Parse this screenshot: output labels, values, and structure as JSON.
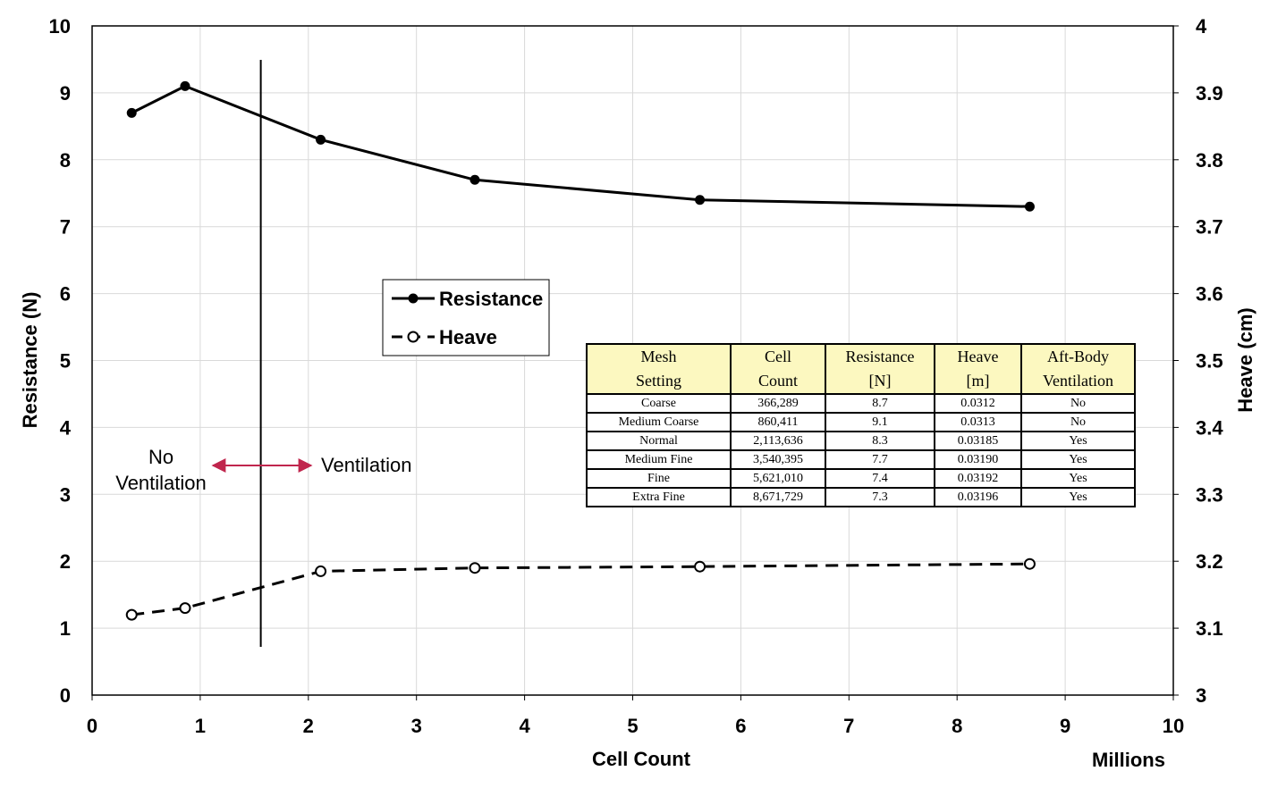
{
  "chart_data": {
    "type": "line",
    "title": "",
    "xlabel": "Cell Count",
    "x_unit_label": "Millions",
    "ylabel_left": "Resistance (N)",
    "ylabel_right": "Heave (cm)",
    "xlim": [
      0,
      10
    ],
    "ylim_left": [
      0,
      10
    ],
    "ylim_right": [
      3,
      4
    ],
    "x_ticks": [
      "0",
      "1",
      "2",
      "3",
      "4",
      "5",
      "6",
      "7",
      "8",
      "9",
      "10"
    ],
    "y_left_ticks": [
      "0",
      "1",
      "2",
      "3",
      "4",
      "5",
      "6",
      "7",
      "8",
      "9",
      "10"
    ],
    "y_right_ticks": [
      "3",
      "3.1",
      "3.2",
      "3.3",
      "3.4",
      "3.5",
      "3.6",
      "3.7",
      "3.8",
      "3.9",
      "4"
    ],
    "grid": true,
    "legend_position": "center",
    "series": [
      {
        "name": "Resistance",
        "axis": "left",
        "style": "solid",
        "marker": "filled-circle",
        "x": [
          0.366,
          0.86,
          2.114,
          3.54,
          5.621,
          8.672
        ],
        "y": [
          8.7,
          9.1,
          8.3,
          7.7,
          7.4,
          7.3
        ]
      },
      {
        "name": "Heave",
        "axis": "right",
        "style": "dashed",
        "marker": "open-circle",
        "x": [
          0.366,
          0.86,
          2.114,
          3.54,
          5.621,
          8.672
        ],
        "y": [
          3.12,
          3.13,
          3.185,
          3.19,
          3.192,
          3.196
        ]
      }
    ],
    "vertical_line_x": 1.56,
    "annotations": {
      "left_label_line1": "No",
      "left_label_line2": "Ventilation",
      "right_label": "Ventilation",
      "arrow_color": "#c0264d"
    },
    "table": {
      "headers": [
        [
          "Mesh",
          "Setting"
        ],
        [
          "Cell",
          "Count"
        ],
        [
          "Resistance",
          "[N]"
        ],
        [
          "Heave",
          "[m]"
        ],
        [
          "Aft-Body",
          "Ventilation"
        ]
      ],
      "rows": [
        [
          "Coarse",
          "366,289",
          "8.7",
          "0.0312",
          "No"
        ],
        [
          "Medium Coarse",
          "860,411",
          "9.1",
          "0.0313",
          "No"
        ],
        [
          "Normal",
          "2,113,636",
          "8.3",
          "0.03185",
          "Yes"
        ],
        [
          "Medium Fine",
          "3,540,395",
          "7.7",
          "0.03190",
          "Yes"
        ],
        [
          "Fine",
          "5,621,010",
          "7.4",
          "0.03192",
          "Yes"
        ],
        [
          "Extra Fine",
          "8,671,729",
          "7.3",
          "0.03196",
          "Yes"
        ]
      ],
      "header_color": "#fcf8c0"
    }
  }
}
